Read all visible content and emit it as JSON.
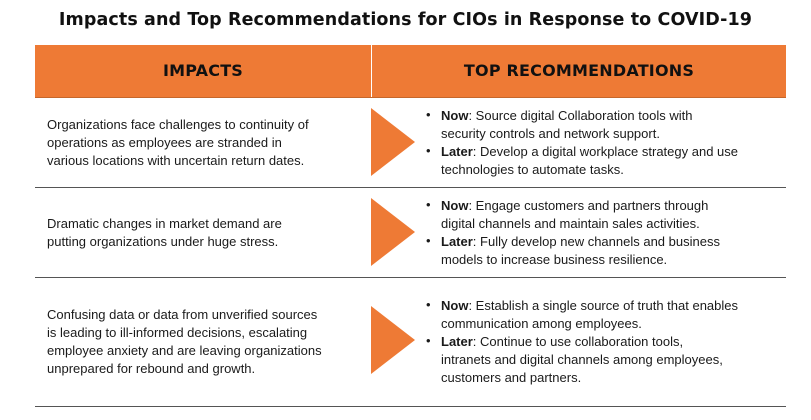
{
  "title": "Impacts and Top Recommendations for CIOs in Response to COVID-19",
  "colors": {
    "header_orange": "#ee7a35",
    "arrow_orange": "#ee7a35",
    "text": "#1a1a1a"
  },
  "table": {
    "headers": {
      "impacts": "IMPACTS",
      "recommendations": "TOP RECOMMENDATIONS"
    },
    "rows": [
      {
        "impact_lines": [
          "Organizations face challenges to continuity of",
          "operations as employees are stranded in",
          "various locations with uncertain return dates."
        ],
        "recommendations": [
          {
            "term": "Now",
            "text_lines": [
              ": Source digital Collaboration tools with",
              "security controls and network support."
            ]
          },
          {
            "term": "Later",
            "text_lines": [
              ": Develop a digital workplace strategy and use",
              "technologies to automate tasks."
            ]
          }
        ]
      },
      {
        "impact_lines": [
          "Dramatic changes in market demand are",
          "putting organizations under huge stress."
        ],
        "recommendations": [
          {
            "term": "Now",
            "text_lines": [
              ": Engage customers and partners through",
              "digital channels and maintain sales activities."
            ]
          },
          {
            "term": "Later",
            "text_lines": [
              ": Fully develop new channels and business",
              "models to increase business resilience."
            ]
          }
        ]
      },
      {
        "impact_lines": [
          "Confusing data or data from unverified sources",
          "is leading to ill-informed decisions, escalating",
          "employee anxiety and are leaving organizations",
          "unprepared for rebound and growth."
        ],
        "recommendations": [
          {
            "term": "Now",
            "text_lines": [
              ": Establish a single source of truth that enables",
              "communication among employees."
            ]
          },
          {
            "term": "Later",
            "text_lines": [
              ": Continue to use collaboration tools,",
              "intranets and digital channels among employees,",
              "customers and partners."
            ]
          }
        ]
      }
    ]
  }
}
